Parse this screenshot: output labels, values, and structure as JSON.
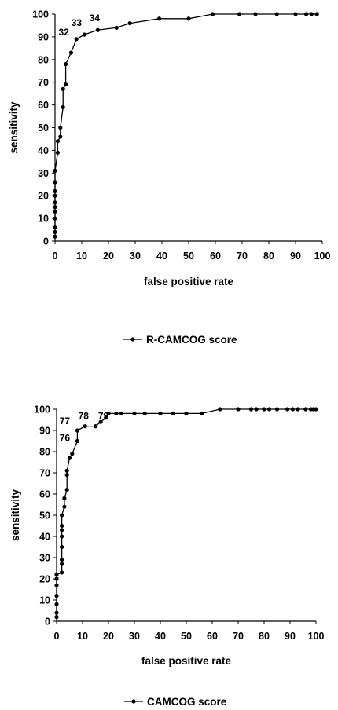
{
  "chart_data": [
    {
      "type": "line",
      "xlabel": "false positive rate",
      "ylabel": "sensitivity",
      "xlim": [
        0,
        100
      ],
      "ylim": [
        0,
        100
      ],
      "x_ticks": [
        "0",
        "10",
        "20",
        "30",
        "40",
        "50",
        "60",
        "70",
        "80",
        "90",
        "100"
      ],
      "y_ticks": [
        "0",
        "10",
        "20",
        "30",
        "40",
        "50",
        "60",
        "70",
        "80",
        "90",
        "100"
      ],
      "grid": false,
      "legend_position": "bottom",
      "series": [
        {
          "name": "R-CAMCOG score",
          "color": "#000000",
          "marker": "circle",
          "points": [
            [
              0,
              2
            ],
            [
              0,
              4
            ],
            [
              0,
              6
            ],
            [
              0,
              10
            ],
            [
              0,
              13
            ],
            [
              0,
              15
            ],
            [
              0,
              17
            ],
            [
              0,
              20
            ],
            [
              0,
              22
            ],
            [
              0,
              26
            ],
            [
              0,
              31
            ],
            [
              1,
              39
            ],
            [
              1,
              44
            ],
            [
              2,
              46
            ],
            [
              2,
              50
            ],
            [
              3,
              59
            ],
            [
              3,
              67
            ],
            [
              4,
              69
            ],
            [
              4,
              78
            ],
            [
              6,
              83
            ],
            [
              8,
              89
            ],
            [
              11,
              91
            ],
            [
              16,
              93
            ],
            [
              23,
              94
            ],
            [
              28,
              96
            ],
            [
              39,
              98
            ],
            [
              50,
              98
            ],
            [
              59,
              100
            ],
            [
              69,
              100
            ],
            [
              75,
              100
            ],
            [
              83,
              100
            ],
            [
              90,
              100
            ],
            [
              94,
              100
            ],
            [
              96,
              100
            ],
            [
              98,
              100
            ]
          ]
        }
      ],
      "annotations": [
        {
          "text": "32",
          "x": 8,
          "y": 89
        },
        {
          "text": "33",
          "x": 11,
          "y": 91
        },
        {
          "text": "34",
          "x": 16,
          "y": 93
        }
      ]
    },
    {
      "type": "line",
      "xlabel": "false positive rate",
      "ylabel": "sensitivity",
      "xlim": [
        0,
        100
      ],
      "ylim": [
        0,
        100
      ],
      "x_ticks": [
        "0",
        "10",
        "20",
        "30",
        "40",
        "50",
        "60",
        "70",
        "80",
        "90",
        "100"
      ],
      "y_ticks": [
        "0",
        "10",
        "20",
        "30",
        "40",
        "50",
        "60",
        "70",
        "80",
        "90",
        "100"
      ],
      "grid": false,
      "legend_position": "bottom",
      "series": [
        {
          "name": "CAMCOG score",
          "color": "#000000",
          "marker": "circle",
          "points": [
            [
              0,
              2
            ],
            [
              0,
              4
            ],
            [
              0,
              8
            ],
            [
              0,
              12
            ],
            [
              0,
              17
            ],
            [
              0,
              20
            ],
            [
              0,
              22
            ],
            [
              2,
              23
            ],
            [
              2,
              27
            ],
            [
              2,
              29
            ],
            [
              2,
              35
            ],
            [
              2,
              40
            ],
            [
              2,
              43
            ],
            [
              2,
              45
            ],
            [
              2,
              50
            ],
            [
              3,
              54
            ],
            [
              3,
              58
            ],
            [
              4,
              62
            ],
            [
              4,
              69
            ],
            [
              4,
              71
            ],
            [
              5,
              77
            ],
            [
              6,
              79
            ],
            [
              8,
              85
            ],
            [
              8,
              90
            ],
            [
              11,
              92
            ],
            [
              15,
              92
            ],
            [
              17,
              94
            ],
            [
              19,
              96
            ],
            [
              20,
              98
            ],
            [
              23,
              98
            ],
            [
              25,
              98
            ],
            [
              30,
              98
            ],
            [
              34,
              98
            ],
            [
              40,
              98
            ],
            [
              45,
              98
            ],
            [
              50,
              98
            ],
            [
              56,
              98
            ],
            [
              63,
              100
            ],
            [
              70,
              100
            ],
            [
              75,
              100
            ],
            [
              77,
              100
            ],
            [
              80,
              100
            ],
            [
              82,
              100
            ],
            [
              85,
              100
            ],
            [
              89,
              100
            ],
            [
              91,
              100
            ],
            [
              93,
              100
            ],
            [
              96,
              100
            ],
            [
              98,
              100
            ],
            [
              99,
              100
            ],
            [
              100,
              100
            ]
          ]
        }
      ],
      "annotations": [
        {
          "text": "76",
          "x": 8,
          "y": 85
        },
        {
          "text": "77",
          "x": 8,
          "y": 90
        },
        {
          "text": "78",
          "x": 11,
          "y": 92
        },
        {
          "text": "79",
          "x": 15,
          "y": 92
        }
      ]
    }
  ]
}
